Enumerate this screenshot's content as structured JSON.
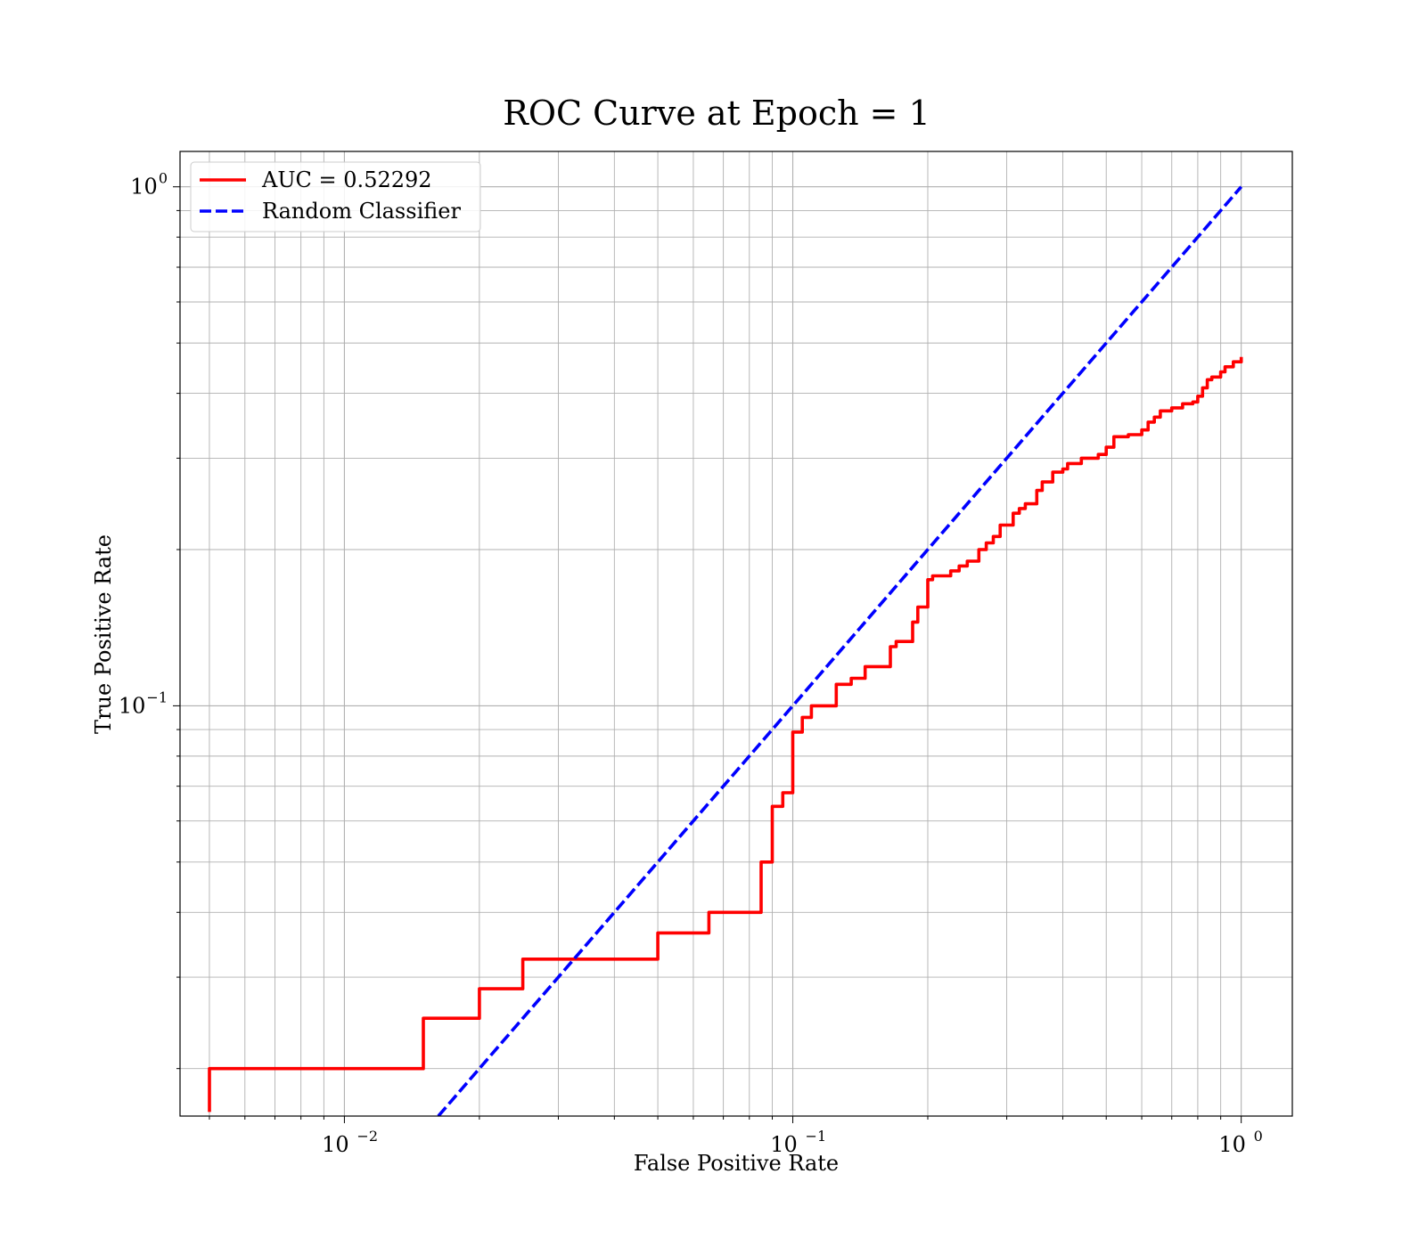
{
  "chart_data": {
    "type": "line",
    "title": "ROC Curve at Epoch = 1",
    "xlabel": "False Positive Rate",
    "ylabel": "True Positive Rate",
    "xscale": "log",
    "yscale": "log",
    "xlim": [
      0.0043,
      1.3
    ],
    "ylim": [
      0.0162,
      1.17
    ],
    "grid": "both-major-and-minor",
    "legend_position": "top-left",
    "x_ticks": [
      {
        "value": 0.01,
        "base": "10",
        "exp": "−2"
      },
      {
        "value": 0.1,
        "base": "10",
        "exp": "−1"
      },
      {
        "value": 1,
        "base": "10",
        "exp": "0"
      }
    ],
    "y_ticks": [
      {
        "value": 0.1,
        "base": "10",
        "exp": "−1"
      },
      {
        "value": 1,
        "base": "10",
        "exp": "0"
      }
    ],
    "series": [
      {
        "name": "AUC = 0.52292",
        "color": "#ff0000",
        "style": "solid",
        "step": true,
        "x": [
          0.005,
          0.005,
          0.015,
          0.015,
          0.02,
          0.02,
          0.025,
          0.025,
          0.05,
          0.05,
          0.065,
          0.065,
          0.085,
          0.085,
          0.09,
          0.09,
          0.095,
          0.1,
          0.1,
          0.105,
          0.105,
          0.11,
          0.11,
          0.12,
          0.125,
          0.125,
          0.13,
          0.135,
          0.14,
          0.145,
          0.155,
          0.165,
          0.165,
          0.17,
          0.17,
          0.175,
          0.185,
          0.185,
          0.19,
          0.19,
          0.2,
          0.2,
          0.205,
          0.225,
          0.225,
          0.23,
          0.235,
          0.24,
          0.245,
          0.25,
          0.26,
          0.26,
          0.27,
          0.27,
          0.28,
          0.28,
          0.29,
          0.29,
          0.3,
          0.31,
          0.31,
          0.32,
          0.33,
          0.34,
          0.35,
          0.36,
          0.37,
          0.38,
          0.39,
          0.4,
          0.41,
          0.42,
          0.44,
          0.46,
          0.48,
          0.5,
          0.5,
          0.52,
          0.52,
          0.54,
          0.56,
          0.58,
          0.6,
          0.62,
          0.62,
          0.64,
          0.64,
          0.66,
          0.66,
          0.68,
          0.7,
          0.72,
          0.74,
          0.76,
          0.78,
          0.8,
          0.82,
          0.82,
          0.84,
          0.84,
          0.86,
          0.88,
          0.9,
          0.92,
          0.94,
          0.96,
          0.98,
          1.0
        ],
        "y": [
          0.0165,
          0.02,
          0.02,
          0.025,
          0.025,
          0.0285,
          0.0285,
          0.0325,
          0.0325,
          0.0365,
          0.0365,
          0.04,
          0.04,
          0.05,
          0.05,
          0.064,
          0.068,
          0.068,
          0.089,
          0.089,
          0.095,
          0.095,
          0.1,
          0.1,
          0.103,
          0.11,
          0.11,
          0.113,
          0.113,
          0.119,
          0.119,
          0.122,
          0.13,
          0.13,
          0.133,
          0.133,
          0.133,
          0.145,
          0.145,
          0.155,
          0.155,
          0.175,
          0.178,
          0.178,
          0.182,
          0.182,
          0.186,
          0.186,
          0.19,
          0.19,
          0.195,
          0.2,
          0.2,
          0.206,
          0.206,
          0.212,
          0.212,
          0.223,
          0.223,
          0.225,
          0.235,
          0.24,
          0.245,
          0.245,
          0.26,
          0.27,
          0.27,
          0.282,
          0.282,
          0.286,
          0.293,
          0.293,
          0.3,
          0.3,
          0.305,
          0.305,
          0.315,
          0.32,
          0.33,
          0.33,
          0.333,
          0.333,
          0.34,
          0.345,
          0.352,
          0.352,
          0.36,
          0.36,
          0.37,
          0.37,
          0.375,
          0.375,
          0.382,
          0.382,
          0.385,
          0.395,
          0.395,
          0.41,
          0.41,
          0.425,
          0.43,
          0.43,
          0.44,
          0.45,
          0.45,
          0.46,
          0.46,
          0.47
        ]
      },
      {
        "name": "Random Classifier",
        "color": "#0000ff",
        "style": "dashed",
        "x": [
          0.0162,
          1.0
        ],
        "y": [
          0.0162,
          1.0
        ]
      }
    ]
  }
}
